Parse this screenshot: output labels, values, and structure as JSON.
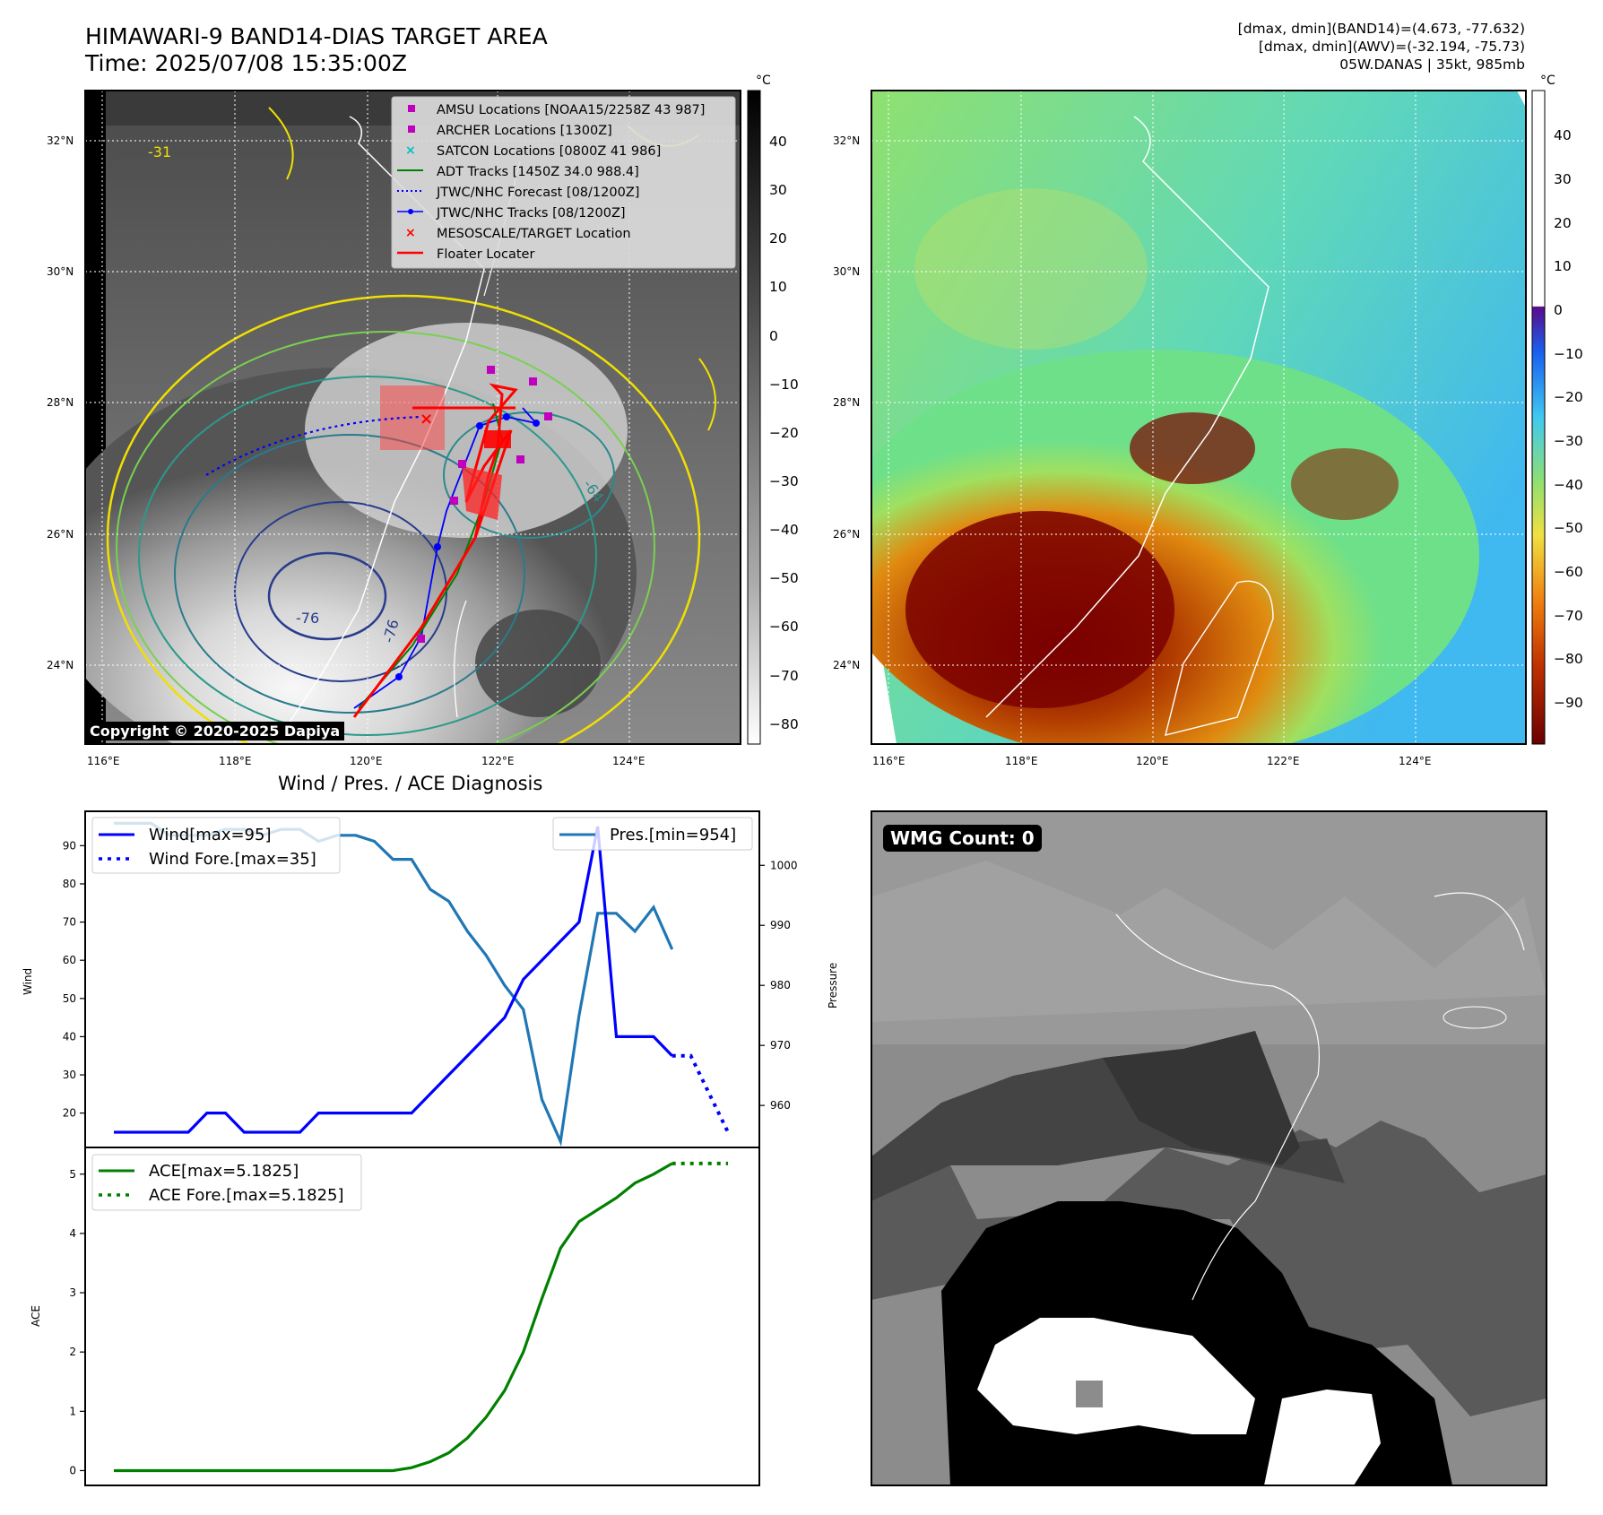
{
  "header": {
    "title_line1": "HIMAWARI-9 BAND14-DIAS TARGET AREA",
    "title_line2": "Time: 2025/07/08 15:35:00Z",
    "info_line1": "[dmax, dmin](BAND14)=(4.673, -77.632)",
    "info_line2": "[dmax, dmin](AWV)=(-32.194, -75.73)",
    "info_line3": "05W.DANAS | 35kt, 985mb"
  },
  "map": {
    "lat_labels": [
      "32°N",
      "30°N",
      "28°N",
      "26°N",
      "24°N"
    ],
    "lon_labels": [
      "116°E",
      "118°E",
      "120°E",
      "122°E",
      "124°E"
    ],
    "contour_labels": [
      "-76",
      "-76",
      "-64",
      "-31"
    ],
    "copyright": "Copyright © 2020-2025 Dapiya",
    "colorbar1_unit": "°C",
    "colorbar1_ticks": [
      "40",
      "30",
      "20",
      "10",
      "0",
      "−10",
      "−20",
      "−30",
      "−40",
      "−50",
      "−60",
      "−70",
      "−80"
    ],
    "colorbar2_unit": "°C",
    "colorbar2_ticks": [
      "40",
      "30",
      "20",
      "10",
      "0",
      "−10",
      "−20",
      "−30",
      "−40",
      "−50",
      "−60",
      "−70",
      "−80",
      "−90"
    ],
    "legend": [
      {
        "label": "AMSU Locations [NOAA15/2258Z 43 987]",
        "marker": "square",
        "color": "#bf00bf"
      },
      {
        "label": "ARCHER Locations [1300Z]",
        "marker": "square",
        "color": "#bf00bf"
      },
      {
        "label": "SATCON Locations [0800Z 41 986]",
        "marker": "x",
        "color": "#00bfbf"
      },
      {
        "label": "ADT Tracks [1450Z 34.0 988.4]",
        "marker": "line",
        "color": "#008000"
      },
      {
        "label": "JTWC/NHC Forecast [08/1200Z]",
        "marker": "dotted",
        "color": "#0000ff"
      },
      {
        "label": "JTWC/NHC Tracks [08/1200Z]",
        "marker": "dotline",
        "color": "#0000ff"
      },
      {
        "label": "MESOSCALE/TARGET Location",
        "marker": "x",
        "color": "#ff0000"
      },
      {
        "label": "Floater Locater",
        "marker": "line",
        "color": "#ff0000"
      }
    ]
  },
  "diagnosis": {
    "title": "Wind / Pres. / ACE Diagnosis",
    "wind_ylabel": "Wind",
    "pres_ylabel": "Pressure",
    "ace_ylabel": "ACE",
    "wind_ticks": [
      "90",
      "80",
      "70",
      "60",
      "50",
      "40",
      "30",
      "20"
    ],
    "pres_ticks": [
      "1000",
      "990",
      "980",
      "970",
      "960"
    ],
    "ace_ticks": [
      "5",
      "4",
      "3",
      "2",
      "1",
      "0"
    ],
    "legend_wind": "Wind[max=95]",
    "legend_wind_fore": "Wind Fore.[max=35]",
    "legend_pres": "Pres.[min=954]",
    "legend_ace": "ACE[max=5.1825]",
    "legend_ace_fore": "ACE Fore.[max=5.1825]"
  },
  "wmg": {
    "label": "WMG Count: 0"
  },
  "chart_data": [
    {
      "type": "line",
      "title": "Wind / Pres. / ACE Diagnosis",
      "ylabel": "Wind",
      "ylim": [
        11,
        99
      ],
      "series": [
        {
          "name": "Wind[max=95]",
          "color": "#0000ff",
          "x": [
            0,
            1,
            2,
            3,
            4,
            5,
            6,
            7,
            8,
            9,
            10,
            11,
            12,
            13,
            14,
            15,
            16,
            17,
            18,
            19,
            20,
            21,
            22,
            23,
            24,
            25,
            26,
            27,
            28,
            29,
            30
          ],
          "y": [
            15,
            15,
            15,
            15,
            15,
            20,
            20,
            15,
            15,
            15,
            15,
            20,
            20,
            20,
            20,
            20,
            20,
            25,
            30,
            35,
            40,
            45,
            55,
            60,
            65,
            70,
            95,
            40,
            40,
            40,
            35
          ]
        },
        {
          "name": "Wind Fore.[max=35]",
          "color": "#0000ff",
          "dashed": true,
          "x": [
            30,
            31,
            32,
            33
          ],
          "y": [
            35,
            35,
            25,
            15
          ]
        }
      ]
    },
    {
      "type": "line",
      "ylabel": "Pressure",
      "ylim": [
        953,
        1009
      ],
      "series": [
        {
          "name": "Pres.[min=954]",
          "color": "#1f77b4",
          "x": [
            0,
            1,
            2,
            3,
            4,
            5,
            6,
            7,
            8,
            9,
            10,
            11,
            12,
            13,
            14,
            15,
            16,
            17,
            18,
            19,
            20,
            21,
            22,
            23,
            24,
            25,
            26,
            27,
            28,
            29,
            30
          ],
          "y": [
            1007,
            1007,
            1007,
            1005,
            1005,
            1005,
            1006,
            1006,
            1005,
            1006,
            1006,
            1004,
            1005,
            1005,
            1004,
            1001,
            1001,
            996,
            994,
            989,
            985,
            980,
            976,
            961,
            954,
            975,
            992,
            992,
            989,
            993,
            986
          ]
        }
      ]
    },
    {
      "type": "line",
      "ylabel": "ACE",
      "ylim": [
        -0.25,
        5.45
      ],
      "series": [
        {
          "name": "ACE[max=5.1825]",
          "color": "#008000",
          "x": [
            0,
            5,
            10,
            15,
            16,
            17,
            18,
            19,
            20,
            21,
            22,
            23,
            24,
            25,
            26,
            27,
            28,
            29,
            30
          ],
          "y": [
            0,
            0,
            0,
            0,
            0.05,
            0.15,
            0.3,
            0.55,
            0.9,
            1.35,
            2.0,
            2.9,
            3.75,
            4.2,
            4.4,
            4.6,
            4.85,
            5.0,
            5.18
          ]
        },
        {
          "name": "ACE Fore.[max=5.1825]",
          "color": "#008000",
          "dashed": true,
          "x": [
            30,
            33
          ],
          "y": [
            5.18,
            5.18
          ]
        }
      ]
    }
  ],
  "colors": {
    "wind": "#0000ff",
    "pressure": "#1f77b4",
    "ace": "#008000",
    "track_red": "#ff0000",
    "amsu": "#bf00bf"
  }
}
